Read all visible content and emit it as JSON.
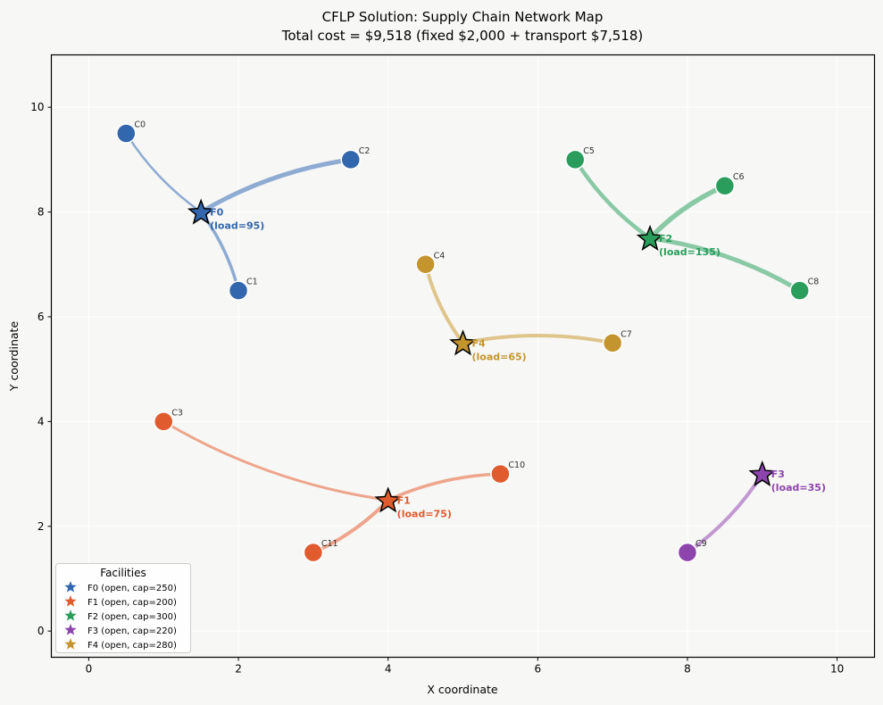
{
  "chart_data": {
    "type": "scatter",
    "title": "CFLP Solution: Supply Chain Network Map",
    "subtitle": "Total cost = $9,518  (fixed $2,000 + transport $7,518)",
    "xlabel": "X coordinate",
    "ylabel": "Y coordinate",
    "xlim": [
      -0.5,
      10.5
    ],
    "ylim": [
      -0.5,
      11
    ],
    "xticks": [
      0,
      2,
      4,
      6,
      8,
      10
    ],
    "yticks": [
      0,
      2,
      4,
      6,
      8,
      10
    ],
    "grid": true,
    "legend": {
      "title": "Facilities",
      "placement": "bottom-left",
      "entries": [
        {
          "label": "F0 (open, cap=250)",
          "facility": "F0"
        },
        {
          "label": "F1 (open, cap=200)",
          "facility": "F1"
        },
        {
          "label": "F2 (open, cap=300)",
          "facility": "F2"
        },
        {
          "label": "F3 (open, cap=220)",
          "facility": "F3"
        },
        {
          "label": "F4 (open, cap=280)",
          "facility": "F4"
        }
      ]
    },
    "facilities": [
      {
        "id": "F0",
        "x": 1.5,
        "y": 8.0,
        "load": 95,
        "capacity": 250,
        "status": "open",
        "color": "#3266ad",
        "label": "F0",
        "load_label": "(load=95)"
      },
      {
        "id": "F1",
        "x": 4.0,
        "y": 2.5,
        "load": 75,
        "capacity": 200,
        "status": "open",
        "color": "#e05c2e",
        "label": "F1",
        "load_label": "(load=75)"
      },
      {
        "id": "F2",
        "x": 7.5,
        "y": 7.5,
        "load": 135,
        "capacity": 300,
        "status": "open",
        "color": "#2a9d5c",
        "label": "F2",
        "load_label": "(load=135)"
      },
      {
        "id": "F3",
        "x": 9.0,
        "y": 3.0,
        "load": 35,
        "capacity": 220,
        "status": "open",
        "color": "#8e44ad",
        "label": "F3",
        "load_label": "(load=35)"
      },
      {
        "id": "F4",
        "x": 5.0,
        "y": 5.5,
        "load": 65,
        "capacity": 280,
        "status": "open",
        "color": "#c4952e",
        "label": "F4",
        "load_label": "(load=65)"
      }
    ],
    "customers": [
      {
        "id": "C0",
        "x": 0.5,
        "y": 9.5,
        "assigned": "F0"
      },
      {
        "id": "C1",
        "x": 2.0,
        "y": 6.5,
        "assigned": "F0"
      },
      {
        "id": "C2",
        "x": 3.5,
        "y": 9.0,
        "assigned": "F0"
      },
      {
        "id": "C3",
        "x": 1.0,
        "y": 4.0,
        "assigned": "F1"
      },
      {
        "id": "C4",
        "x": 4.5,
        "y": 7.0,
        "assigned": "F4"
      },
      {
        "id": "C5",
        "x": 6.5,
        "y": 9.0,
        "assigned": "F2"
      },
      {
        "id": "C6",
        "x": 8.5,
        "y": 8.5,
        "assigned": "F2"
      },
      {
        "id": "C7",
        "x": 7.0,
        "y": 5.5,
        "assigned": "F4"
      },
      {
        "id": "C8",
        "x": 9.5,
        "y": 6.5,
        "assigned": "F2"
      },
      {
        "id": "C9",
        "x": 8.0,
        "y": 1.5,
        "assigned": "F3"
      },
      {
        "id": "C10",
        "x": 5.5,
        "y": 3.0,
        "assigned": "F1"
      },
      {
        "id": "C11",
        "x": 3.0,
        "y": 1.5,
        "assigned": "F1"
      }
    ],
    "edges": [
      {
        "from": "C0",
        "to": "F0",
        "weight": 2.5
      },
      {
        "from": "C1",
        "to": "F0",
        "weight": 3.5
      },
      {
        "from": "C2",
        "to": "F0",
        "weight": 5.0
      },
      {
        "from": "C3",
        "to": "F1",
        "weight": 3.0
      },
      {
        "from": "C4",
        "to": "F4",
        "weight": 4.0
      },
      {
        "from": "C5",
        "to": "F2",
        "weight": 4.5
      },
      {
        "from": "C6",
        "to": "F2",
        "weight": 5.5
      },
      {
        "from": "C7",
        "to": "F4",
        "weight": 4.0
      },
      {
        "from": "C8",
        "to": "F2",
        "weight": 5.0
      },
      {
        "from": "C9",
        "to": "F3",
        "weight": 4.0
      },
      {
        "from": "C10",
        "to": "F1",
        "weight": 3.5
      },
      {
        "from": "C11",
        "to": "F1",
        "weight": 4.0
      }
    ]
  }
}
